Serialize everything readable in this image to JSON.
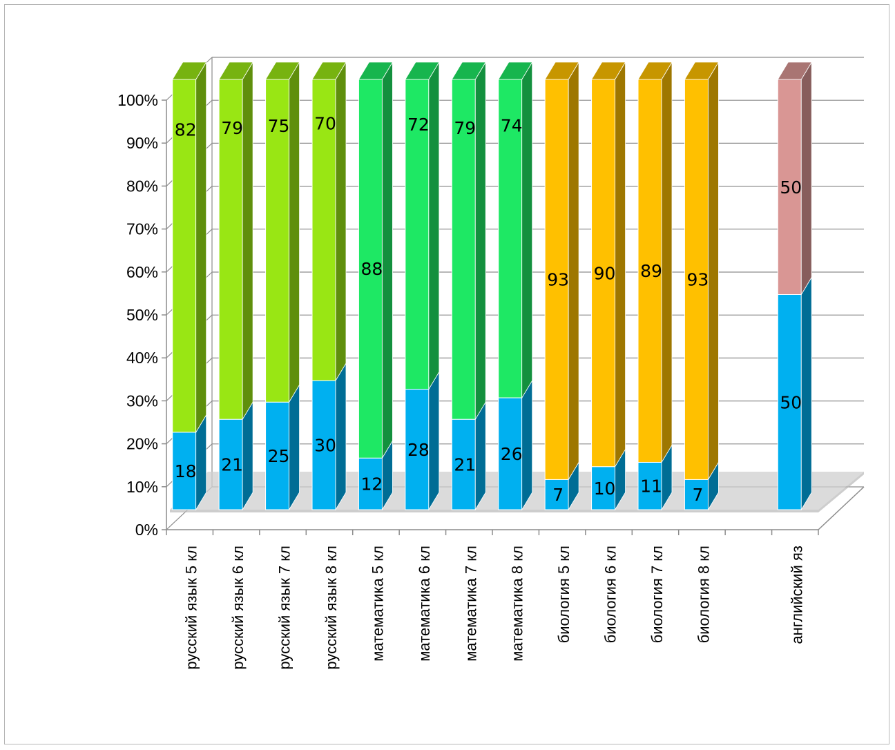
{
  "chart_data": {
    "type": "bar",
    "stacked": true,
    "percent": true,
    "three_d": true,
    "title": "",
    "xlabel": "",
    "ylabel": "",
    "ylim": [
      0,
      100
    ],
    "y_ticks": [
      "0%",
      "10%",
      "20%",
      "30%",
      "40%",
      "50%",
      "60%",
      "70%",
      "80%",
      "90%",
      "100%"
    ],
    "grid": true,
    "legend": "none",
    "categories": [
      "русский язык 5 кл",
      "русский язык 6 кл",
      "русский язык 7 кл",
      "русский язык 8 кл",
      "математика 5 кл",
      "математика 6 кл",
      "математика 7 кл",
      "математика 8 кл",
      "биология 5 кл",
      "биология 6 кл",
      "биология 7 кл",
      "биология 8 кл",
      "",
      "английский яз"
    ],
    "series": [
      {
        "values": [
          18,
          21,
          25,
          30,
          12,
          28,
          21,
          26,
          7,
          10,
          11,
          7,
          null,
          50
        ]
      },
      {
        "values": [
          82,
          79,
          75,
          70,
          88,
          72,
          79,
          74,
          93,
          90,
          89,
          93,
          null,
          50
        ]
      }
    ],
    "colors": {
      "lower": "#00b0f0",
      "upper_by_subject": [
        "#99e614",
        "#99e614",
        "#99e614",
        "#99e614",
        "#1ee864",
        "#1ee864",
        "#1ee864",
        "#1ee864",
        "#ffc000",
        "#ffc000",
        "#ffc000",
        "#ffc000",
        null,
        "#d99694"
      ]
    }
  }
}
